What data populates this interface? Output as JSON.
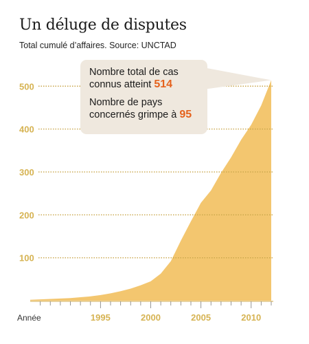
{
  "title": "Un déluge de disputes",
  "subtitle": "Total cumulé d’affaires. Source: UNCTAD",
  "callout": {
    "line1a": "Nombre total de cas",
    "line1b": "connus atteint ",
    "value1": "514",
    "line2a": "Nombre de pays",
    "line2b": "concernés grimpe à ",
    "value2": "95"
  },
  "colors": {
    "area": "#f3c66f",
    "tick": "#d6b352",
    "callout_bg": "#efe8de",
    "highlight": "#e5621d"
  },
  "chart_data": {
    "type": "area",
    "title": "Un déluge de disputes",
    "subtitle": "Total cumulé d’affaires. Source: UNCTAD",
    "xlabel": "Année",
    "ylabel": "",
    "x_tick_labels": [
      "1995",
      "2000",
      "2005",
      "2010"
    ],
    "y_tick_labels": [
      "100",
      "200",
      "300",
      "400",
      "500"
    ],
    "xlim": [
      1988,
      2012
    ],
    "ylim": [
      0,
      520
    ],
    "grid": "dotted horizontal",
    "series": [
      {
        "x": [
          1988,
          1989,
          1990,
          1991,
          1992,
          1993,
          1994,
          1995,
          1996,
          1997,
          1998,
          1999,
          2000,
          2001,
          2002,
          2003,
          2004,
          2005,
          2006,
          2007,
          2008,
          2009,
          2010,
          2011,
          2012
        ],
        "values": [
          2,
          3,
          4,
          5,
          6,
          8,
          10,
          13,
          17,
          22,
          28,
          36,
          45,
          63,
          92,
          140,
          185,
          228,
          257,
          298,
          334,
          375,
          410,
          455,
          514
        ]
      }
    ]
  }
}
